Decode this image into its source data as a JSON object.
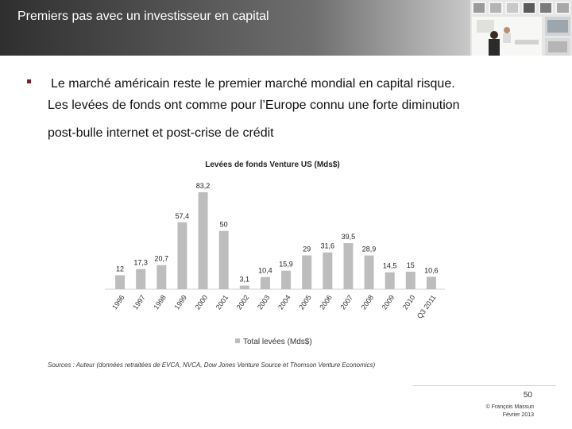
{
  "slide": {
    "title": "Premiers pas avec un investisseur en capital",
    "bullet_lines": [
      "Le marché américain reste le premier marché mondial en capital risque.",
      "Les levées de fonds ont comme pour l’Europe connu une forte diminution",
      "post-bulle internet et post-crise de crédit"
    ],
    "sources": "Sources : Auteur (données retraitées de EVCA, NVCA, Dow Jones Venture Source et Thomson Venture Economics)",
    "page_number": "50",
    "copyright_lines": [
      "© François Massuri",
      "Février 2013"
    ]
  },
  "colors": {
    "bar": "#bdbdbd",
    "bullet": "#7a1f2b"
  },
  "chart_data": {
    "type": "bar",
    "title": "Levées de fonds Venture US  (Mds$)",
    "categories": [
      "1996",
      "1997",
      "1998",
      "1999",
      "2000",
      "2001",
      "2002",
      "2003",
      "2004",
      "2005",
      "2006",
      "2007",
      "2008",
      "2009",
      "2010",
      "Q3 2011"
    ],
    "series": [
      {
        "name": "Total levées (Mds$)",
        "values": [
          12,
          17.3,
          20.7,
          57.4,
          83.2,
          50,
          3.1,
          10.4,
          15.9,
          29,
          31.6,
          39.5,
          28.9,
          14.5,
          15,
          10.6
        ],
        "labels": [
          "12",
          "17,3",
          "20,7",
          "57,4",
          "83,2",
          "50",
          "3,1",
          "10,4",
          "15,9",
          "29",
          "31,6",
          "39,5",
          "28,9",
          "14,5",
          "15",
          "10,6"
        ]
      }
    ],
    "ylim": [
      0,
      90
    ],
    "grid": false,
    "legend_position": "bottom"
  }
}
